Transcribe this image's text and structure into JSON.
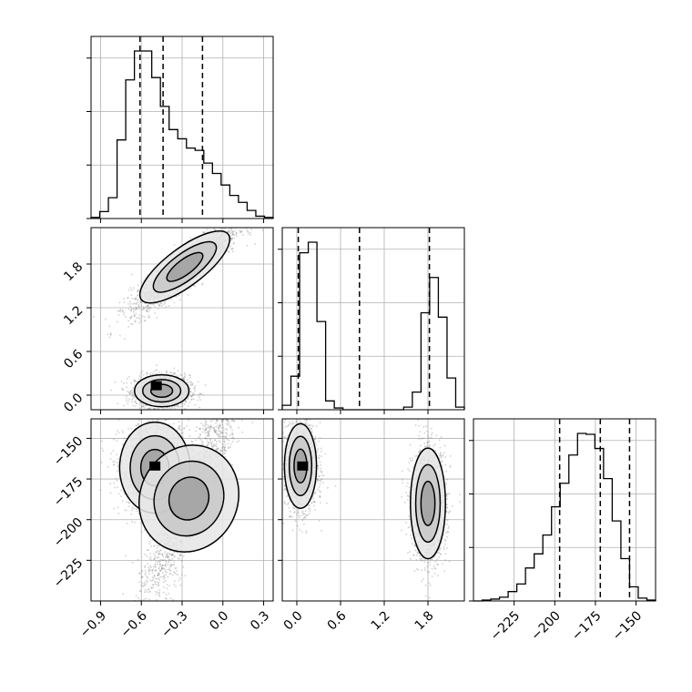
{
  "chart_data": {
    "type": "corner",
    "colors": {
      "line": "#000000",
      "grid": "#b0b0b0",
      "scatter": "#808080",
      "background": "#ffffff"
    },
    "grid": true,
    "params": [
      {
        "range": [
          -0.97,
          0.37
        ],
        "ticks": [
          -0.9,
          -0.6,
          -0.3,
          0.0,
          0.3
        ],
        "tick_labels": [
          "−0.9",
          "−0.6",
          "−0.3",
          "0.0",
          "0.3"
        ],
        "quantiles": [
          -0.61,
          -0.44,
          -0.15
        ],
        "hist_counts": [
          1,
          6,
          18,
          68,
          120,
          145,
          145,
          122,
          97,
          77,
          69,
          61,
          59,
          48,
          39,
          29,
          20,
          14,
          7,
          2,
          1
        ]
      },
      {
        "range": [
          -0.2,
          2.3
        ],
        "ticks": [
          0.0,
          0.6,
          1.2,
          1.8
        ],
        "tick_labels": [
          "0.0",
          "0.6",
          "1.2",
          "1.8"
        ],
        "quantiles": [
          0.02,
          0.86,
          1.82
        ],
        "hist_counts": [
          5,
          38,
          178,
          190,
          100,
          10,
          2,
          0,
          0,
          0,
          0,
          0,
          0,
          0,
          3,
          20,
          110,
          150,
          105,
          36,
          3
        ]
      },
      {
        "range": [
          -250,
          -138
        ],
        "ticks": [
          -225,
          -200,
          -175,
          -150
        ],
        "tick_labels": [
          "−225",
          "−200",
          "−175",
          "−150"
        ],
        "quantiles": [
          -197,
          -172,
          -154
        ],
        "hist_counts": [
          0,
          1,
          2,
          4,
          10,
          18,
          35,
          50,
          70,
          100,
          125,
          155,
          178,
          177,
          162,
          130,
          85,
          45,
          15,
          3,
          1
        ]
      }
    ],
    "pairs": [
      {
        "row": 1,
        "col": 0,
        "clusters": [
          {
            "cx": -0.45,
            "cy": 0.06,
            "sx": 0.1,
            "sy": 0.11,
            "n": 1700
          },
          {
            "cx": -0.28,
            "cy": 1.76,
            "sx": 0.2,
            "sy": 0.13,
            "n": 1900,
            "tilt": 0.28
          }
        ],
        "peak": [
          -0.49,
          0.13
        ]
      },
      {
        "row": 2,
        "col": 0,
        "clusters": [
          {
            "cx": -0.5,
            "cy": -168,
            "sx": 0.13,
            "sy": 14,
            "n": 1800
          },
          {
            "cx": -0.25,
            "cy": -187,
            "sx": 0.2,
            "sy": 15,
            "n": 1800,
            "tilt": 35
          }
        ],
        "peak": [
          -0.5,
          -167
        ]
      },
      {
        "row": 2,
        "col": 1,
        "clusters": [
          {
            "cx": 0.05,
            "cy": -167,
            "sx": 0.11,
            "sy": 13,
            "n": 1700
          },
          {
            "cx": 1.8,
            "cy": -190,
            "sx": 0.12,
            "sy": 17,
            "n": 1700
          }
        ],
        "peak": [
          0.08,
          -167
        ]
      }
    ]
  }
}
